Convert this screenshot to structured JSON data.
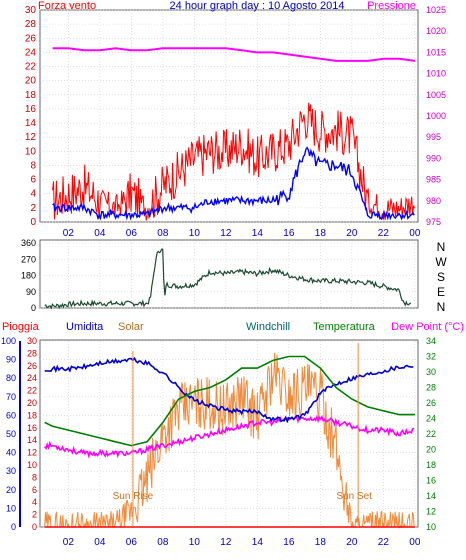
{
  "header": {
    "left_label": "Forza vento",
    "title": "24 hour graph day : 10 Agosto 2014",
    "right_label": "Pressione"
  },
  "direction_labels": [
    "N",
    "W",
    "S",
    "E",
    "N"
  ],
  "bottom_header": {
    "rain": "Pioggia",
    "humidity": "Umidita",
    "solar": "Solar",
    "windchill": "Windchill",
    "temperature": "Temperatura",
    "dewpoint": "Dew Point (°C)"
  },
  "annotations": {
    "sun_rise": "Sun Rise",
    "sun_set": "Sun Set"
  },
  "colors": {
    "wind_gust": "#ff0000",
    "wind_avg": "#0000ff",
    "pressure": "#ff00ff",
    "direction": "#1a4a2e",
    "humidity": "#0000cc",
    "solar": "#f08a3c",
    "windchill": "#006666",
    "temperature": "#008000",
    "dewpoint": "#ff00ff",
    "rain": "#ff0000",
    "grid": "#cccccc"
  },
  "chart_data": [
    {
      "type": "line",
      "x_ticks": [
        "02",
        "04",
        "06",
        "08",
        "10",
        "12",
        "14",
        "16",
        "18",
        "20",
        "22",
        "00"
      ],
      "y_left_ticks": [
        0,
        2,
        4,
        6,
        8,
        10,
        12,
        14,
        16,
        18,
        20,
        22,
        24,
        26,
        28,
        30
      ],
      "y_right_ticks": [
        975,
        980,
        985,
        990,
        995,
        1000,
        1005,
        1010,
        1015,
        1020,
        1025
      ],
      "ylim_left": [
        0,
        30
      ],
      "ylim_right": [
        975,
        1025
      ],
      "x_hours": [
        1,
        2,
        3,
        4,
        5,
        6,
        7,
        8,
        9,
        10,
        11,
        12,
        13,
        14,
        15,
        16,
        17,
        18,
        19,
        20,
        21,
        22,
        23,
        24
      ],
      "series": [
        {
          "values": [
            3,
            4,
            5,
            3,
            2,
            4,
            2,
            5,
            7,
            9,
            10,
            10,
            11,
            9,
            10,
            11,
            15,
            13,
            13,
            12,
            3,
            2,
            2,
            3
          ]
        },
        {
          "values": [
            2,
            2,
            2,
            1,
            1,
            1,
            1,
            2,
            2,
            2,
            3,
            3,
            3,
            3,
            3,
            4,
            10,
            8,
            8,
            7,
            1,
            1,
            1,
            1
          ]
        },
        {
          "values": [
            1016,
            1016,
            1015.5,
            1015.5,
            1016,
            1015.5,
            1015.5,
            1016,
            1016,
            1016,
            1016,
            1016,
            1015.5,
            1015,
            1015,
            1014.5,
            1014,
            1013.5,
            1013,
            1013,
            1013,
            1013.5,
            1013.5,
            1013
          ]
        }
      ]
    },
    {
      "type": "line",
      "y_ticks": [
        0,
        90,
        180,
        270,
        360
      ],
      "ylim": [
        0,
        360
      ],
      "x_hours": [
        0.5,
        1,
        2,
        3,
        4,
        5,
        6,
        7,
        7.2,
        7.5,
        7.7,
        8,
        8.1,
        8.2,
        9,
        10,
        11,
        12,
        13,
        14,
        15,
        16,
        17,
        18,
        19,
        20,
        21,
        22,
        23,
        23.3,
        23.8
      ],
      "values": [
        15,
        10,
        20,
        25,
        25,
        25,
        25,
        25,
        50,
        240,
        320,
        320,
        30,
        130,
        120,
        130,
        200,
        190,
        200,
        190,
        210,
        180,
        160,
        150,
        150,
        145,
        140,
        120,
        100,
        30,
        30
      ]
    },
    {
      "type": "line",
      "y_left_ticks_rain": [
        0,
        2,
        4,
        6,
        8,
        10,
        12,
        14,
        16,
        18,
        20,
        22,
        24,
        26,
        28,
        30
      ],
      "y_humidity_ticks": [
        0,
        10,
        20,
        30,
        40,
        50,
        60,
        70,
        80,
        90,
        100
      ],
      "y_right_ticks": [
        10,
        12,
        14,
        16,
        18,
        20,
        22,
        24,
        26,
        28,
        30,
        32,
        34
      ],
      "ylim_humidity": [
        0,
        100
      ],
      "ylim_temperature": [
        10,
        34
      ],
      "x_hours": [
        0.5,
        1,
        2,
        3,
        4,
        5,
        6,
        7,
        8,
        9,
        10,
        11,
        12,
        13,
        14,
        15,
        16,
        17,
        18,
        19,
        20,
        21,
        22,
        23,
        24
      ],
      "series": [
        {
          "values": [
            85,
            85,
            85,
            86,
            88,
            89,
            90,
            88,
            83,
            75,
            68,
            65,
            63,
            62,
            62,
            58,
            58,
            60,
            72,
            77,
            80,
            82,
            84,
            86,
            87
          ]
        },
        {
          "values": [
            23.5,
            23,
            22.5,
            22,
            21.5,
            21,
            20.5,
            21,
            23.5,
            26.5,
            27.5,
            28,
            29,
            30.5,
            30.5,
            31.5,
            32,
            32,
            30.5,
            28,
            26.5,
            25.5,
            25,
            24.5,
            24.5
          ]
        },
        {
          "values": [
            20.5,
            20.5,
            20,
            19.5,
            19.5,
            19.5,
            19.5,
            20,
            20.5,
            21,
            21.5,
            22,
            22.5,
            23,
            23.5,
            23.5,
            24,
            24,
            24,
            23.5,
            23,
            22.5,
            22.5,
            22,
            22.5
          ]
        },
        {
          "values": [
            0,
            0,
            0,
            0,
            0,
            0,
            2,
            6,
            12,
            15,
            16,
            16,
            15,
            17,
            14,
            20,
            17,
            18,
            17,
            10,
            0,
            0,
            0,
            0,
            0
          ]
        },
        {
          "values": [
            0,
            0,
            0,
            0,
            0,
            0,
            0,
            0,
            0,
            0,
            0,
            0,
            0,
            0,
            0,
            0,
            0,
            0,
            0,
            0,
            0,
            0,
            0,
            0,
            0
          ]
        }
      ]
    }
  ]
}
